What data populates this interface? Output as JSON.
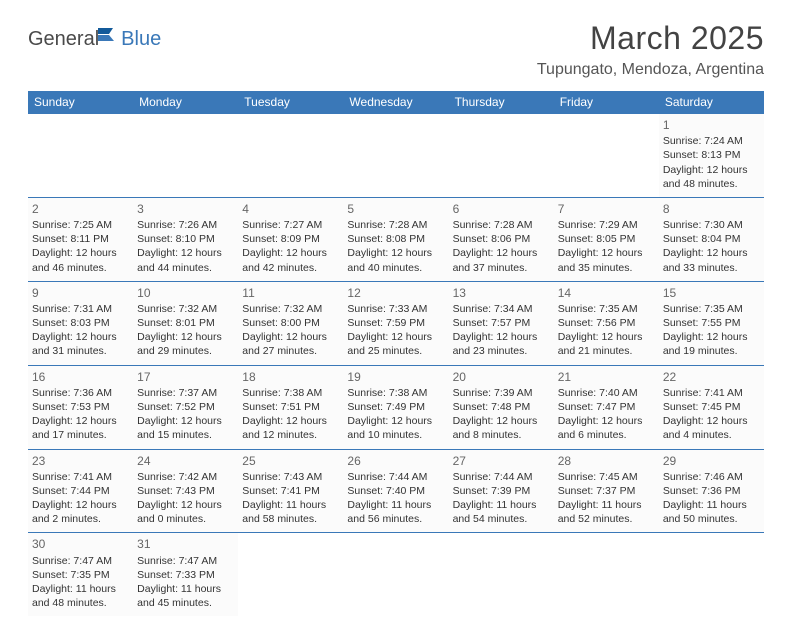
{
  "logo": {
    "general": "General",
    "blue": "Blue"
  },
  "title": "March 2025",
  "location": "Tupungato, Mendoza, Argentina",
  "colors": {
    "header_bg": "#3a78b8",
    "header_text": "#ffffff",
    "border": "#3a78b8",
    "cell_bg": "#fbfbfb",
    "text": "#333333",
    "daynum": "#666666",
    "title_color": "#434343",
    "location_color": "#555555"
  },
  "day_headers": [
    "Sunday",
    "Monday",
    "Tuesday",
    "Wednesday",
    "Thursday",
    "Friday",
    "Saturday"
  ],
  "weeks": [
    [
      null,
      null,
      null,
      null,
      null,
      null,
      {
        "n": "1",
        "sr": "Sunrise: 7:24 AM",
        "ss": "Sunset: 8:13 PM",
        "d1": "Daylight: 12 hours",
        "d2": "and 48 minutes."
      }
    ],
    [
      {
        "n": "2",
        "sr": "Sunrise: 7:25 AM",
        "ss": "Sunset: 8:11 PM",
        "d1": "Daylight: 12 hours",
        "d2": "and 46 minutes."
      },
      {
        "n": "3",
        "sr": "Sunrise: 7:26 AM",
        "ss": "Sunset: 8:10 PM",
        "d1": "Daylight: 12 hours",
        "d2": "and 44 minutes."
      },
      {
        "n": "4",
        "sr": "Sunrise: 7:27 AM",
        "ss": "Sunset: 8:09 PM",
        "d1": "Daylight: 12 hours",
        "d2": "and 42 minutes."
      },
      {
        "n": "5",
        "sr": "Sunrise: 7:28 AM",
        "ss": "Sunset: 8:08 PM",
        "d1": "Daylight: 12 hours",
        "d2": "and 40 minutes."
      },
      {
        "n": "6",
        "sr": "Sunrise: 7:28 AM",
        "ss": "Sunset: 8:06 PM",
        "d1": "Daylight: 12 hours",
        "d2": "and 37 minutes."
      },
      {
        "n": "7",
        "sr": "Sunrise: 7:29 AM",
        "ss": "Sunset: 8:05 PM",
        "d1": "Daylight: 12 hours",
        "d2": "and 35 minutes."
      },
      {
        "n": "8",
        "sr": "Sunrise: 7:30 AM",
        "ss": "Sunset: 8:04 PM",
        "d1": "Daylight: 12 hours",
        "d2": "and 33 minutes."
      }
    ],
    [
      {
        "n": "9",
        "sr": "Sunrise: 7:31 AM",
        "ss": "Sunset: 8:03 PM",
        "d1": "Daylight: 12 hours",
        "d2": "and 31 minutes."
      },
      {
        "n": "10",
        "sr": "Sunrise: 7:32 AM",
        "ss": "Sunset: 8:01 PM",
        "d1": "Daylight: 12 hours",
        "d2": "and 29 minutes."
      },
      {
        "n": "11",
        "sr": "Sunrise: 7:32 AM",
        "ss": "Sunset: 8:00 PM",
        "d1": "Daylight: 12 hours",
        "d2": "and 27 minutes."
      },
      {
        "n": "12",
        "sr": "Sunrise: 7:33 AM",
        "ss": "Sunset: 7:59 PM",
        "d1": "Daylight: 12 hours",
        "d2": "and 25 minutes."
      },
      {
        "n": "13",
        "sr": "Sunrise: 7:34 AM",
        "ss": "Sunset: 7:57 PM",
        "d1": "Daylight: 12 hours",
        "d2": "and 23 minutes."
      },
      {
        "n": "14",
        "sr": "Sunrise: 7:35 AM",
        "ss": "Sunset: 7:56 PM",
        "d1": "Daylight: 12 hours",
        "d2": "and 21 minutes."
      },
      {
        "n": "15",
        "sr": "Sunrise: 7:35 AM",
        "ss": "Sunset: 7:55 PM",
        "d1": "Daylight: 12 hours",
        "d2": "and 19 minutes."
      }
    ],
    [
      {
        "n": "16",
        "sr": "Sunrise: 7:36 AM",
        "ss": "Sunset: 7:53 PM",
        "d1": "Daylight: 12 hours",
        "d2": "and 17 minutes."
      },
      {
        "n": "17",
        "sr": "Sunrise: 7:37 AM",
        "ss": "Sunset: 7:52 PM",
        "d1": "Daylight: 12 hours",
        "d2": "and 15 minutes."
      },
      {
        "n": "18",
        "sr": "Sunrise: 7:38 AM",
        "ss": "Sunset: 7:51 PM",
        "d1": "Daylight: 12 hours",
        "d2": "and 12 minutes."
      },
      {
        "n": "19",
        "sr": "Sunrise: 7:38 AM",
        "ss": "Sunset: 7:49 PM",
        "d1": "Daylight: 12 hours",
        "d2": "and 10 minutes."
      },
      {
        "n": "20",
        "sr": "Sunrise: 7:39 AM",
        "ss": "Sunset: 7:48 PM",
        "d1": "Daylight: 12 hours",
        "d2": "and 8 minutes."
      },
      {
        "n": "21",
        "sr": "Sunrise: 7:40 AM",
        "ss": "Sunset: 7:47 PM",
        "d1": "Daylight: 12 hours",
        "d2": "and 6 minutes."
      },
      {
        "n": "22",
        "sr": "Sunrise: 7:41 AM",
        "ss": "Sunset: 7:45 PM",
        "d1": "Daylight: 12 hours",
        "d2": "and 4 minutes."
      }
    ],
    [
      {
        "n": "23",
        "sr": "Sunrise: 7:41 AM",
        "ss": "Sunset: 7:44 PM",
        "d1": "Daylight: 12 hours",
        "d2": "and 2 minutes."
      },
      {
        "n": "24",
        "sr": "Sunrise: 7:42 AM",
        "ss": "Sunset: 7:43 PM",
        "d1": "Daylight: 12 hours",
        "d2": "and 0 minutes."
      },
      {
        "n": "25",
        "sr": "Sunrise: 7:43 AM",
        "ss": "Sunset: 7:41 PM",
        "d1": "Daylight: 11 hours",
        "d2": "and 58 minutes."
      },
      {
        "n": "26",
        "sr": "Sunrise: 7:44 AM",
        "ss": "Sunset: 7:40 PM",
        "d1": "Daylight: 11 hours",
        "d2": "and 56 minutes."
      },
      {
        "n": "27",
        "sr": "Sunrise: 7:44 AM",
        "ss": "Sunset: 7:39 PM",
        "d1": "Daylight: 11 hours",
        "d2": "and 54 minutes."
      },
      {
        "n": "28",
        "sr": "Sunrise: 7:45 AM",
        "ss": "Sunset: 7:37 PM",
        "d1": "Daylight: 11 hours",
        "d2": "and 52 minutes."
      },
      {
        "n": "29",
        "sr": "Sunrise: 7:46 AM",
        "ss": "Sunset: 7:36 PM",
        "d1": "Daylight: 11 hours",
        "d2": "and 50 minutes."
      }
    ],
    [
      {
        "n": "30",
        "sr": "Sunrise: 7:47 AM",
        "ss": "Sunset: 7:35 PM",
        "d1": "Daylight: 11 hours",
        "d2": "and 48 minutes."
      },
      {
        "n": "31",
        "sr": "Sunrise: 7:47 AM",
        "ss": "Sunset: 7:33 PM",
        "d1": "Daylight: 11 hours",
        "d2": "and 45 minutes."
      },
      null,
      null,
      null,
      null,
      null
    ]
  ]
}
